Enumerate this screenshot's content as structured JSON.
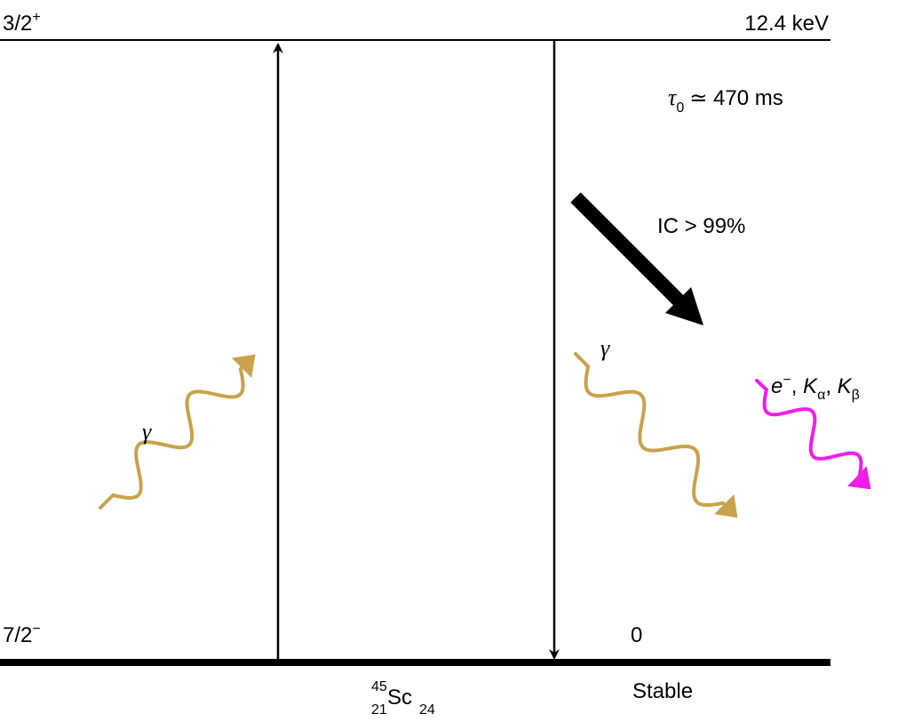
{
  "upper_level": {
    "spin_parity": "3/2",
    "parity_sign": "+",
    "energy": "12.4 keV"
  },
  "lifetime": {
    "symbol": "τ",
    "subscript": "0",
    "relation": "≃ 470 ms"
  },
  "ground_level": {
    "spin_parity": "7/2",
    "parity_sign": "−",
    "energy": "0",
    "status": "Stable"
  },
  "nucleus": {
    "mass_number": "45",
    "atomic_number": "21",
    "symbol": "Sc",
    "neutron_number": "24"
  },
  "internal_conversion": {
    "label": "IC > 99%"
  },
  "gamma_absorbed": {
    "symbol": "γ"
  },
  "gamma_emitted": {
    "symbol": "γ"
  },
  "conversion_products": {
    "electron": "e",
    "electron_charge": "−",
    "sep1": ", ",
    "k_symbol_1": "K",
    "k_alpha_sub": "α",
    "sep2": ", ",
    "k_symbol_2": "K",
    "k_beta_sub": "β"
  },
  "colors": {
    "gamma": "#c9a24b",
    "conversion": "#ee1ee6",
    "lines": "#000000"
  }
}
